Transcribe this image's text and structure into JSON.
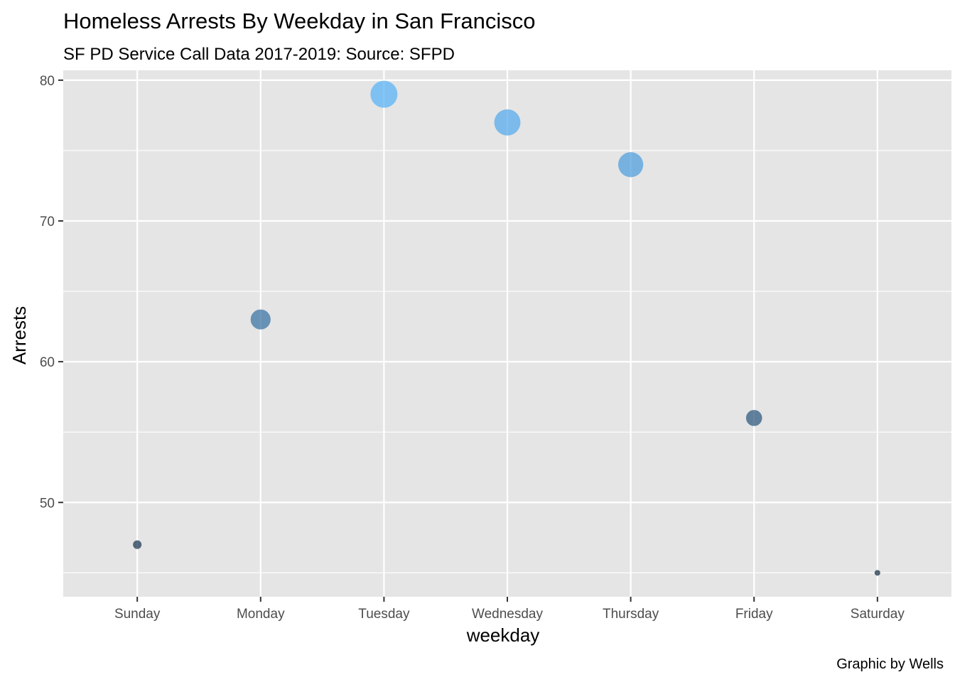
{
  "chart_data": {
    "type": "scatter",
    "title": "Homeless Arrests By Weekday in San Francisco",
    "subtitle": "SF PD Service Call Data 2017-2019: Source: SFPD",
    "caption": "Graphic by Wells",
    "xlabel": "weekday",
    "ylabel": "Arrests",
    "categories": [
      "Sunday",
      "Monday",
      "Tuesday",
      "Wednesday",
      "Thursday",
      "Friday",
      "Saturday"
    ],
    "values": [
      47,
      63,
      79,
      77,
      74,
      56,
      45
    ],
    "y_ticks": [
      50,
      60,
      70,
      80
    ],
    "ylim": [
      43.3,
      80.7
    ],
    "grid": true,
    "legend": "none",
    "size_and_color_encode": "Arrests",
    "colors": {
      "panel_background": "#e5e5e5",
      "grid": "#ffffff",
      "point_low": "#132b43",
      "point_high": "#56b1f7"
    }
  }
}
